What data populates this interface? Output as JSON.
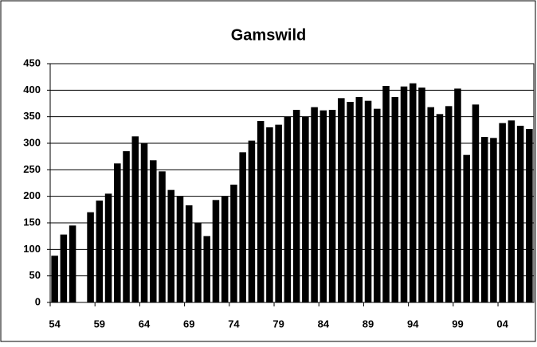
{
  "chart_data": {
    "type": "bar",
    "title": "Gamswild",
    "categories": [
      "54",
      null,
      null,
      null,
      null,
      "59",
      null,
      null,
      null,
      null,
      "64",
      null,
      null,
      null,
      null,
      "69",
      null,
      null,
      null,
      null,
      "74",
      null,
      null,
      null,
      null,
      "79",
      null,
      null,
      null,
      null,
      "84",
      null,
      null,
      null,
      null,
      "89",
      null,
      null,
      null,
      null,
      "94",
      null,
      null,
      null,
      null,
      "99",
      null,
      null,
      null,
      null,
      "04",
      null,
      null,
      null
    ],
    "values": [
      88,
      128,
      145,
      null,
      170,
      192,
      205,
      262,
      285,
      313,
      300,
      268,
      247,
      212,
      200,
      183,
      150,
      125,
      193,
      200,
      222,
      283,
      305,
      342,
      330,
      335,
      350,
      363,
      350,
      368,
      362,
      363,
      385,
      378,
      387,
      380,
      365,
      408,
      387,
      407,
      413,
      405,
      368,
      355,
      370,
      403,
      278,
      373,
      312,
      310,
      338,
      343,
      333,
      327
    ],
    "color": "#000000",
    "ylim": [
      0,
      450
    ],
    "yticks": [
      0,
      50,
      100,
      150,
      200,
      250,
      300,
      350,
      400,
      450
    ],
    "grid": true
  }
}
